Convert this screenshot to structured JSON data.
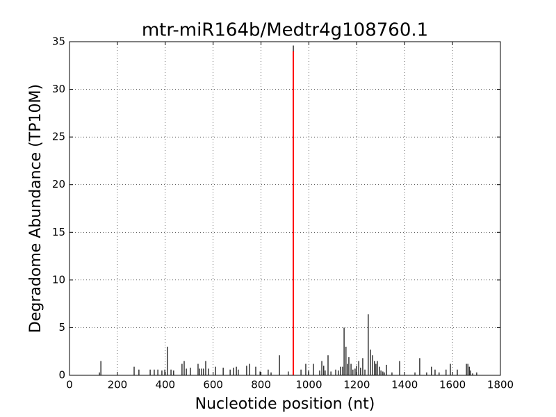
{
  "chart_data": {
    "type": "stem",
    "title": "mtr-miR164b/Medtr4g108760.1",
    "x_label": "Nucleotide position (nt)",
    "y_label": "Degradome Abundance (TP10M)",
    "xlim": [
      0,
      1800
    ],
    "ylim": [
      0,
      35
    ],
    "xticks": [
      0,
      200,
      400,
      600,
      800,
      1000,
      1200,
      1400,
      1600,
      1800
    ],
    "yticks": [
      0,
      5,
      10,
      15,
      20,
      25,
      30,
      35
    ],
    "grid": true,
    "series": [
      {
        "color": "#000000",
        "x": [
          125,
          131,
          270,
          290,
          337,
          354,
          369,
          386,
          398,
          409,
          424,
          435,
          470,
          479,
          488,
          505,
          537,
          543,
          552,
          560,
          569,
          581,
          610,
          642,
          671,
          685,
          697,
          705,
          740,
          752,
          778,
          796,
          830,
          842,
          877,
          914,
          935,
          967,
          987,
          999,
          1019,
          1045,
          1054,
          1062,
          1068,
          1080,
          1092,
          1112,
          1123,
          1132,
          1141,
          1147,
          1155,
          1161,
          1167,
          1176,
          1184,
          1193,
          1199,
          1208,
          1216,
          1225,
          1234,
          1248,
          1257,
          1266,
          1274,
          1280,
          1286,
          1295,
          1301,
          1309,
          1315,
          1324,
          1347,
          1379,
          1443,
          1463,
          1492,
          1512,
          1527,
          1544,
          1573,
          1591,
          1620,
          1658,
          1664,
          1670,
          1675,
          1684,
          1701
        ],
        "values": [
          0.3,
          1.5,
          0.9,
          0.6,
          0.6,
          0.6,
          0.6,
          0.5,
          0.6,
          3.0,
          0.6,
          0.5,
          1.2,
          1.5,
          0.7,
          0.8,
          1.2,
          0.7,
          0.7,
          0.7,
          1.5,
          0.7,
          0.9,
          0.8,
          0.6,
          0.8,
          0.9,
          0.6,
          1.0,
          1.2,
          0.9,
          0.4,
          0.6,
          0.3,
          2.1,
          0.4,
          34.6,
          0.6,
          1.2,
          0.5,
          1.2,
          0.5,
          1.5,
          1.0,
          0.5,
          2.1,
          0.4,
          0.6,
          0.5,
          0.9,
          0.9,
          5.0,
          3.0,
          1.2,
          1.9,
          1.2,
          0.6,
          0.7,
          1.0,
          1.5,
          0.8,
          1.8,
          0.6,
          6.4,
          2.7,
          2.1,
          1.5,
          1.2,
          1.5,
          0.9,
          0.5,
          0.4,
          0.3,
          1.1,
          0.3,
          1.5,
          0.3,
          1.8,
          0.3,
          0.9,
          0.6,
          0.3,
          0.6,
          1.2,
          0.6,
          1.2,
          1.2,
          0.9,
          0.5,
          0.2,
          0.3
        ]
      },
      {
        "color": "#ff0000",
        "x": [
          935
        ],
        "values": [
          34
        ]
      }
    ]
  }
}
